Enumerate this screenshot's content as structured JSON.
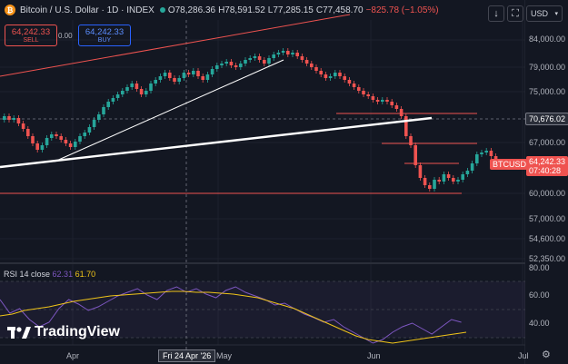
{
  "header": {
    "symbol": "Bitcoin / U.S. Dollar · 1D · INDEX",
    "open": "O78,286.36",
    "high": "H78,591.52",
    "low": "L77,285.15",
    "close": "C77,458.70",
    "change": "−825.78 (−1.05%)"
  },
  "trade": {
    "sell_price": "64,242.33",
    "sell_label": "SELL",
    "buy_price": "64,242.33",
    "buy_label": "BUY",
    "spread": "0.00"
  },
  "toolbar": {
    "download_icon": "download-icon",
    "fullscreen_icon": "fullscreen-icon",
    "currency": "USD"
  },
  "price_axis": [
    "84,000.00",
    "79,000.00",
    "75,000.00",
    "67,000.00",
    "60,000.00",
    "57,000.00",
    "54,600.00",
    "52,350.00"
  ],
  "price_tags": {
    "crosshair": "70,676.02",
    "symbol": "BTCUSD",
    "last": "64,242.33",
    "countdown": "07:40:28"
  },
  "rsi": {
    "label": "RSI 14 close",
    "value1": "62.31",
    "value2": "61.70",
    "axis": [
      "80.00",
      "60.00",
      "40.00"
    ]
  },
  "time_axis": {
    "apr": "Apr",
    "crosshair_date": "Fri 24 Apr '26",
    "may": "May",
    "jun": "Jun",
    "jul": "Jul"
  },
  "branding": {
    "name": "TradingView"
  },
  "colors": {
    "up": "#26a69a",
    "down": "#ef5350",
    "rsi_line": "#7e57c2",
    "rsi_ma": "#f0c419",
    "background": "#131722"
  }
}
